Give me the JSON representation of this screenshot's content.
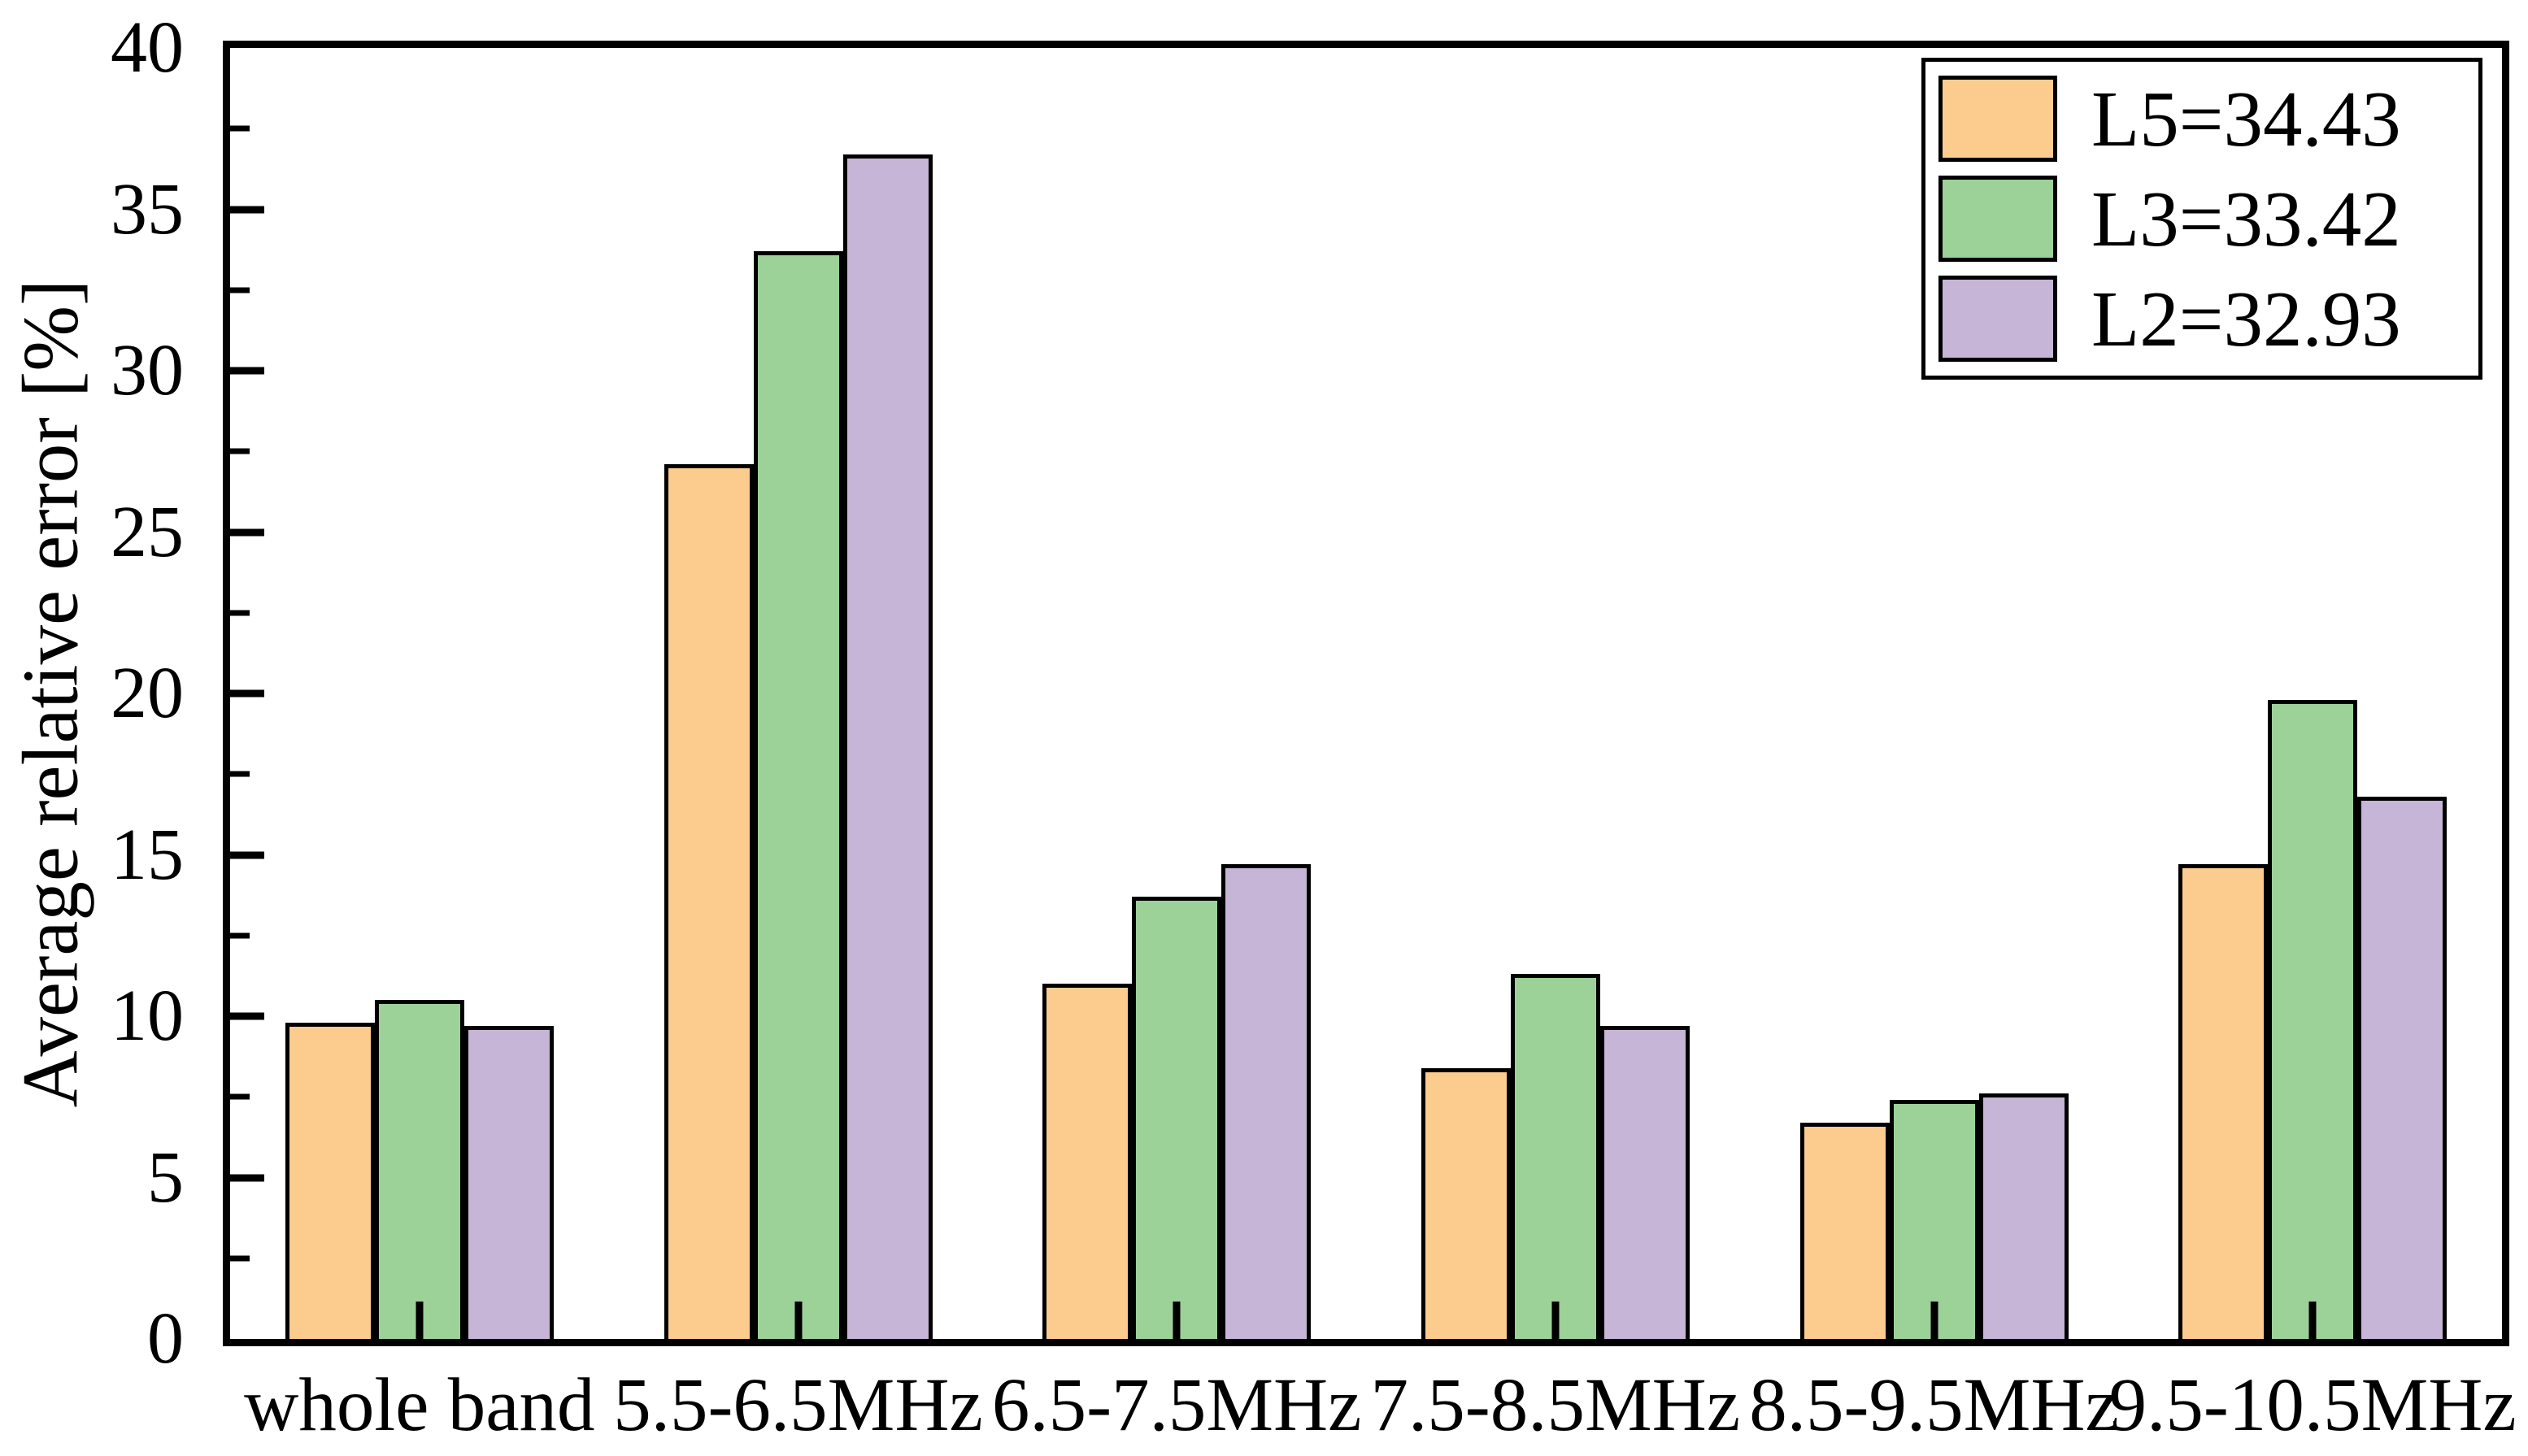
{
  "figure": {
    "background": "#FFFFFF",
    "frame_color": "#000000"
  },
  "chart_data": {
    "type": "bar",
    "title": "",
    "xlabel": "",
    "ylabel": "Average relative error [%]",
    "ylim": [
      0,
      40
    ],
    "y_major_tick_step": 5,
    "y_minor_tick_step": 2.5,
    "y_tick_labels": [
      "0",
      "5",
      "10",
      "15",
      "20",
      "25",
      "30",
      "35",
      "40"
    ],
    "categories": [
      "whole band",
      "5.5-6.5MHz",
      "6.5-7.5MHz",
      "7.5-8.5MHz",
      "8.5-9.5MHz",
      "9.5-10.5MHz"
    ],
    "series": [
      {
        "name": "L5=34.43",
        "color": "#FCCB8E",
        "values": [
          9.8,
          27.1,
          11.0,
          8.4,
          6.7,
          14.7
        ]
      },
      {
        "name": "L3=33.42",
        "color": "#9CD198",
        "values": [
          10.5,
          33.7,
          13.7,
          11.3,
          7.4,
          19.8
        ]
      },
      {
        "name": "L2=32.93",
        "color": "#C6B5D6",
        "values": [
          9.7,
          36.7,
          14.7,
          9.7,
          7.6,
          16.8
        ]
      }
    ],
    "bar_edge_color": "#000000",
    "grid": false,
    "legend_position": "top-right"
  }
}
